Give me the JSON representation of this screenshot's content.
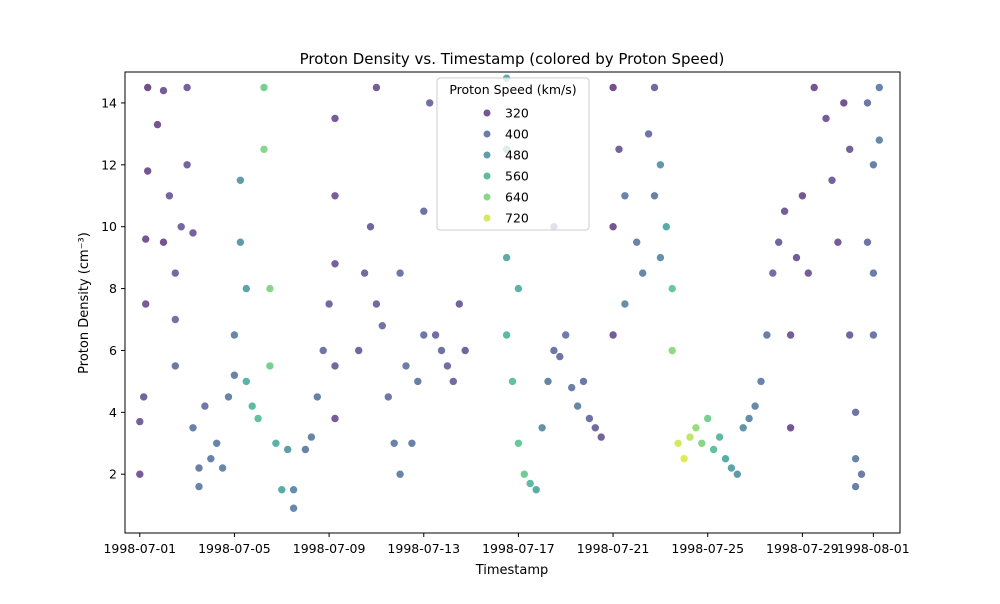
{
  "chart_data": {
    "type": "scatter",
    "title": "Proton Density vs. Timestamp (colored by Proton Speed)",
    "xlabel": "Timestamp",
    "ylabel": "Proton Density (cm⁻³)",
    "xlim": [
      "1998-06-30T09:00",
      "1998-08-02T03:00"
    ],
    "ylim": [
      0.1,
      15
    ],
    "x_ticks": [
      "1998-07-01",
      "1998-07-05",
      "1998-07-09",
      "1998-07-13",
      "1998-07-17",
      "1998-07-21",
      "1998-07-25",
      "1998-07-29",
      "1998-08-01"
    ],
    "y_ticks": [
      2,
      4,
      6,
      8,
      10,
      12,
      14
    ],
    "grid": false,
    "legend": {
      "title": "Proton Speed (km/s)",
      "placement": "top-center",
      "entries": [
        {
          "label": "320",
          "value": 320
        },
        {
          "label": "400",
          "value": 400
        },
        {
          "label": "480",
          "value": 480
        },
        {
          "label": "560",
          "value": 560
        },
        {
          "label": "640",
          "value": 640
        },
        {
          "label": "720",
          "value": 720
        }
      ]
    },
    "colorscale": {
      "name": "viridis",
      "min": 280,
      "max": 760
    },
    "points": [
      {
        "t": "1998-07-01T00:00",
        "y": 2.0,
        "speed": 330
      },
      {
        "t": "1998-07-01T00:00",
        "y": 3.7,
        "speed": 340
      },
      {
        "t": "1998-07-01T04:00",
        "y": 4.5,
        "speed": 345
      },
      {
        "t": "1998-07-01T06:00",
        "y": 7.5,
        "speed": 330
      },
      {
        "t": "1998-07-01T06:00",
        "y": 9.6,
        "speed": 320
      },
      {
        "t": "1998-07-01T08:00",
        "y": 14.5,
        "speed": 310
      },
      {
        "t": "1998-07-01T08:00",
        "y": 11.8,
        "speed": 320
      },
      {
        "t": "1998-07-01T18:00",
        "y": 13.3,
        "speed": 320
      },
      {
        "t": "1998-07-02T00:00",
        "y": 14.4,
        "speed": 330
      },
      {
        "t": "1998-07-02T00:00",
        "y": 9.5,
        "speed": 315
      },
      {
        "t": "1998-07-02T06:00",
        "y": 11.0,
        "speed": 350
      },
      {
        "t": "1998-07-02T12:00",
        "y": 8.5,
        "speed": 360
      },
      {
        "t": "1998-07-02T18:00",
        "y": 10.0,
        "speed": 355
      },
      {
        "t": "1998-07-03T00:00",
        "y": 12.0,
        "speed": 350
      },
      {
        "t": "1998-07-03T00:00",
        "y": 14.5,
        "speed": 345
      },
      {
        "t": "1998-07-03T06:00",
        "y": 9.8,
        "speed": 340
      },
      {
        "t": "1998-07-02T12:00",
        "y": 5.5,
        "speed": 390
      },
      {
        "t": "1998-07-02T12:00",
        "y": 7.0,
        "speed": 380
      },
      {
        "t": "1998-07-03T06:00",
        "y": 3.5,
        "speed": 410
      },
      {
        "t": "1998-07-03T12:00",
        "y": 1.6,
        "speed": 420
      },
      {
        "t": "1998-07-03T12:00",
        "y": 2.2,
        "speed": 400
      },
      {
        "t": "1998-07-03T18:00",
        "y": 4.2,
        "speed": 395
      },
      {
        "t": "1998-07-04T00:00",
        "y": 2.5,
        "speed": 410
      },
      {
        "t": "1998-07-04T06:00",
        "y": 3.0,
        "speed": 420
      },
      {
        "t": "1998-07-04T12:00",
        "y": 2.2,
        "speed": 430
      },
      {
        "t": "1998-07-04T18:00",
        "y": 4.5,
        "speed": 420
      },
      {
        "t": "1998-07-05T00:00",
        "y": 5.2,
        "speed": 410
      },
      {
        "t": "1998-07-05T00:00",
        "y": 6.5,
        "speed": 430
      },
      {
        "t": "1998-07-05T06:00",
        "y": 9.5,
        "speed": 470
      },
      {
        "t": "1998-07-05T06:00",
        "y": 11.5,
        "speed": 480
      },
      {
        "t": "1998-07-05T12:00",
        "y": 8.0,
        "speed": 500
      },
      {
        "t": "1998-07-05T12:00",
        "y": 5.0,
        "speed": 540
      },
      {
        "t": "1998-07-05T18:00",
        "y": 4.2,
        "speed": 560
      },
      {
        "t": "1998-07-06T00:00",
        "y": 3.8,
        "speed": 580
      },
      {
        "t": "1998-07-06T06:00",
        "y": 12.5,
        "speed": 640
      },
      {
        "t": "1998-07-06T06:00",
        "y": 14.5,
        "speed": 620
      },
      {
        "t": "1998-07-06T12:00",
        "y": 8.0,
        "speed": 640
      },
      {
        "t": "1998-07-06T12:00",
        "y": 5.5,
        "speed": 620
      },
      {
        "t": "1998-07-06T18:00",
        "y": 3.0,
        "speed": 540
      },
      {
        "t": "1998-07-07T00:00",
        "y": 1.5,
        "speed": 520
      },
      {
        "t": "1998-07-07T06:00",
        "y": 2.8,
        "speed": 480
      },
      {
        "t": "1998-07-07T12:00",
        "y": 0.9,
        "speed": 430
      },
      {
        "t": "1998-07-07T12:00",
        "y": 1.5,
        "speed": 440
      },
      {
        "t": "1998-07-08T00:00",
        "y": 2.8,
        "speed": 410
      },
      {
        "t": "1998-07-08T06:00",
        "y": 3.2,
        "speed": 420
      },
      {
        "t": "1998-07-08T12:00",
        "y": 4.5,
        "speed": 410
      },
      {
        "t": "1998-07-08T18:00",
        "y": 6.0,
        "speed": 390
      },
      {
        "t": "1998-07-09T00:00",
        "y": 7.5,
        "speed": 360
      },
      {
        "t": "1998-07-09T06:00",
        "y": 5.5,
        "speed": 355
      },
      {
        "t": "1998-07-09T06:00",
        "y": 8.8,
        "speed": 340
      },
      {
        "t": "1998-07-09T06:00",
        "y": 13.5,
        "speed": 330
      },
      {
        "t": "1998-07-09T06:00",
        "y": 11.0,
        "speed": 335
      },
      {
        "t": "1998-07-09T06:00",
        "y": 3.8,
        "speed": 330
      },
      {
        "t": "1998-07-10T06:00",
        "y": 6.0,
        "speed": 350
      },
      {
        "t": "1998-07-10T12:00",
        "y": 8.5,
        "speed": 360
      },
      {
        "t": "1998-07-10T18:00",
        "y": 10.0,
        "speed": 350
      },
      {
        "t": "1998-07-11T00:00",
        "y": 14.5,
        "speed": 330
      },
      {
        "t": "1998-07-11T00:00",
        "y": 7.5,
        "speed": 360
      },
      {
        "t": "1998-07-11T06:00",
        "y": 6.8,
        "speed": 380
      },
      {
        "t": "1998-07-11T12:00",
        "y": 4.5,
        "speed": 390
      },
      {
        "t": "1998-07-11T18:00",
        "y": 3.0,
        "speed": 410
      },
      {
        "t": "1998-07-12T00:00",
        "y": 2.0,
        "speed": 420
      },
      {
        "t": "1998-07-12T00:00",
        "y": 8.5,
        "speed": 390
      },
      {
        "t": "1998-07-12T06:00",
        "y": 5.5,
        "speed": 400
      },
      {
        "t": "1998-07-12T12:00",
        "y": 3.0,
        "speed": 410
      },
      {
        "t": "1998-07-12T18:00",
        "y": 5.0,
        "speed": 400
      },
      {
        "t": "1998-07-13T00:00",
        "y": 6.5,
        "speed": 390
      },
      {
        "t": "1998-07-13T00:00",
        "y": 10.5,
        "speed": 380
      },
      {
        "t": "1998-07-13T06:00",
        "y": 14.0,
        "speed": 370
      },
      {
        "t": "1998-07-13T12:00",
        "y": 6.5,
        "speed": 370
      },
      {
        "t": "1998-07-13T18:00",
        "y": 6.0,
        "speed": 380
      },
      {
        "t": "1998-07-14T00:00",
        "y": 5.5,
        "speed": 370
      },
      {
        "t": "1998-07-14T06:00",
        "y": 5.0,
        "speed": 360
      },
      {
        "t": "1998-07-14T12:00",
        "y": 7.5,
        "speed": 340
      },
      {
        "t": "1998-07-14T18:00",
        "y": 6.0,
        "speed": 350
      },
      {
        "t": "1998-07-16T12:00",
        "y": 14.8,
        "speed": 520
      },
      {
        "t": "1998-07-16T12:00",
        "y": 12.5,
        "speed": 500
      },
      {
        "t": "1998-07-16T12:00",
        "y": 9.0,
        "speed": 520
      },
      {
        "t": "1998-07-16T12:00",
        "y": 6.5,
        "speed": 560
      },
      {
        "t": "1998-07-16T18:00",
        "y": 5.0,
        "speed": 580
      },
      {
        "t": "1998-07-17T00:00",
        "y": 8.0,
        "speed": 540
      },
      {
        "t": "1998-07-17T00:00",
        "y": 3.0,
        "speed": 600
      },
      {
        "t": "1998-07-17T06:00",
        "y": 2.0,
        "speed": 610
      },
      {
        "t": "1998-07-17T12:00",
        "y": 1.7,
        "speed": 560
      },
      {
        "t": "1998-07-17T18:00",
        "y": 1.5,
        "speed": 520
      },
      {
        "t": "1998-07-18T00:00",
        "y": 3.5,
        "speed": 450
      },
      {
        "t": "1998-07-18T06:00",
        "y": 5.0,
        "speed": 420
      },
      {
        "t": "1998-07-18T12:00",
        "y": 6.0,
        "speed": 390
      },
      {
        "t": "1998-07-18T12:00",
        "y": 10.0,
        "speed": 360
      },
      {
        "t": "1998-07-18T18:00",
        "y": 5.8,
        "speed": 380
      },
      {
        "t": "1998-07-19T00:00",
        "y": 6.5,
        "speed": 400
      },
      {
        "t": "1998-07-19T06:00",
        "y": 4.8,
        "speed": 410
      },
      {
        "t": "1998-07-19T12:00",
        "y": 4.2,
        "speed": 430
      },
      {
        "t": "1998-07-19T18:00",
        "y": 5.0,
        "speed": 390
      },
      {
        "t": "1998-07-20T00:00",
        "y": 3.8,
        "speed": 380
      },
      {
        "t": "1998-07-20T06:00",
        "y": 3.5,
        "speed": 360
      },
      {
        "t": "1998-07-20T12:00",
        "y": 3.2,
        "speed": 340
      },
      {
        "t": "1998-07-21T00:00",
        "y": 6.5,
        "speed": 330
      },
      {
        "t": "1998-07-21T00:00",
        "y": 10.0,
        "speed": 320
      },
      {
        "t": "1998-07-21T00:00",
        "y": 14.5,
        "speed": 310
      },
      {
        "t": "1998-07-21T06:00",
        "y": 12.5,
        "speed": 340
      },
      {
        "t": "1998-07-21T12:00",
        "y": 11.0,
        "speed": 420
      },
      {
        "t": "1998-07-21T12:00",
        "y": 7.5,
        "speed": 440
      },
      {
        "t": "1998-07-22T00:00",
        "y": 9.5,
        "speed": 420
      },
      {
        "t": "1998-07-22T06:00",
        "y": 8.5,
        "speed": 430
      },
      {
        "t": "1998-07-22T12:00",
        "y": 13.0,
        "speed": 380
      },
      {
        "t": "1998-07-22T18:00",
        "y": 14.5,
        "speed": 360
      },
      {
        "t": "1998-07-22T18:00",
        "y": 11.0,
        "speed": 410
      },
      {
        "t": "1998-07-23T00:00",
        "y": 9.0,
        "speed": 450
      },
      {
        "t": "1998-07-23T00:00",
        "y": 12.0,
        "speed": 470
      },
      {
        "t": "1998-07-23T06:00",
        "y": 10.0,
        "speed": 520
      },
      {
        "t": "1998-07-23T12:00",
        "y": 8.0,
        "speed": 600
      },
      {
        "t": "1998-07-23T12:00",
        "y": 6.0,
        "speed": 650
      },
      {
        "t": "1998-07-23T18:00",
        "y": 3.0,
        "speed": 720
      },
      {
        "t": "1998-07-24T00:00",
        "y": 2.5,
        "speed": 730
      },
      {
        "t": "1998-07-24T06:00",
        "y": 3.2,
        "speed": 700
      },
      {
        "t": "1998-07-24T12:00",
        "y": 3.5,
        "speed": 660
      },
      {
        "t": "1998-07-24T18:00",
        "y": 3.0,
        "speed": 640
      },
      {
        "t": "1998-07-25T00:00",
        "y": 3.8,
        "speed": 620
      },
      {
        "t": "1998-07-25T06:00",
        "y": 2.8,
        "speed": 580
      },
      {
        "t": "1998-07-25T12:00",
        "y": 3.2,
        "speed": 560
      },
      {
        "t": "1998-07-25T18:00",
        "y": 2.5,
        "speed": 520
      },
      {
        "t": "1998-07-26T00:00",
        "y": 2.2,
        "speed": 500
      },
      {
        "t": "1998-07-26T06:00",
        "y": 2.0,
        "speed": 470
      },
      {
        "t": "1998-07-26T12:00",
        "y": 3.5,
        "speed": 460
      },
      {
        "t": "1998-07-26T18:00",
        "y": 3.8,
        "speed": 440
      },
      {
        "t": "1998-07-27T00:00",
        "y": 4.2,
        "speed": 430
      },
      {
        "t": "1998-07-27T06:00",
        "y": 5.0,
        "speed": 420
      },
      {
        "t": "1998-07-27T12:00",
        "y": 6.5,
        "speed": 400
      },
      {
        "t": "1998-07-27T18:00",
        "y": 8.5,
        "speed": 370
      },
      {
        "t": "1998-07-28T00:00",
        "y": 9.5,
        "speed": 350
      },
      {
        "t": "1998-07-28T06:00",
        "y": 10.5,
        "speed": 330
      },
      {
        "t": "1998-07-28T12:00",
        "y": 6.5,
        "speed": 330
      },
      {
        "t": "1998-07-28T12:00",
        "y": 3.5,
        "speed": 320
      },
      {
        "t": "1998-07-28T18:00",
        "y": 9.0,
        "speed": 330
      },
      {
        "t": "1998-07-29T00:00",
        "y": 11.0,
        "speed": 320
      },
      {
        "t": "1998-07-29T06:00",
        "y": 8.5,
        "speed": 330
      },
      {
        "t": "1998-07-29T12:00",
        "y": 14.5,
        "speed": 320
      },
      {
        "t": "1998-07-30T00:00",
        "y": 13.5,
        "speed": 330
      },
      {
        "t": "1998-07-30T06:00",
        "y": 11.5,
        "speed": 340
      },
      {
        "t": "1998-07-30T12:00",
        "y": 9.5,
        "speed": 330
      },
      {
        "t": "1998-07-30T18:00",
        "y": 14.0,
        "speed": 320
      },
      {
        "t": "1998-07-31T00:00",
        "y": 12.5,
        "speed": 340
      },
      {
        "t": "1998-07-31T00:00",
        "y": 6.5,
        "speed": 350
      },
      {
        "t": "1998-07-31T06:00",
        "y": 4.0,
        "speed": 380
      },
      {
        "t": "1998-07-31T06:00",
        "y": 2.5,
        "speed": 420
      },
      {
        "t": "1998-07-31T06:00",
        "y": 1.6,
        "speed": 410
      },
      {
        "t": "1998-07-31T12:00",
        "y": 2.0,
        "speed": 400
      },
      {
        "t": "1998-07-31T18:00",
        "y": 14.0,
        "speed": 390
      },
      {
        "t": "1998-07-31T18:00",
        "y": 9.5,
        "speed": 380
      },
      {
        "t": "1998-08-01T00:00",
        "y": 6.5,
        "speed": 390
      },
      {
        "t": "1998-08-01T00:00",
        "y": 8.5,
        "speed": 400
      },
      {
        "t": "1998-08-01T00:00",
        "y": 12.0,
        "speed": 410
      },
      {
        "t": "1998-08-01T06:00",
        "y": 14.5,
        "speed": 420
      },
      {
        "t": "1998-08-01T06:00",
        "y": 12.8,
        "speed": 430
      }
    ]
  }
}
